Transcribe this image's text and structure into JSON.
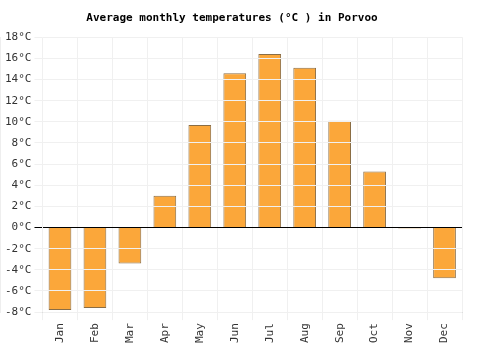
{
  "chart_data": {
    "type": "bar",
    "title": "Average monthly temperatures (°C ) in Porvoo",
    "categories": [
      "Jan",
      "Feb",
      "Mar",
      "Apr",
      "May",
      "Jun",
      "Jul",
      "Aug",
      "Sep",
      "Oct",
      "Nov",
      "Dec"
    ],
    "values": [
      -7.8,
      -7.6,
      -3.4,
      3.0,
      9.7,
      14.6,
      16.4,
      15.1,
      10.1,
      5.3,
      -0.1,
      -4.8
    ],
    "color": "#fba73a",
    "ylim": [
      -8,
      18
    ],
    "yticks": [
      {
        "value": -8,
        "label": "-8°C"
      },
      {
        "value": -6,
        "label": "-6°C"
      },
      {
        "value": -4,
        "label": "-4°C"
      },
      {
        "value": -2,
        "label": "-2°C"
      },
      {
        "value": 0,
        "label": "0°C"
      },
      {
        "value": 2,
        "label": "2°C"
      },
      {
        "value": 4,
        "label": "4°C"
      },
      {
        "value": 6,
        "label": "6°C"
      },
      {
        "value": 8,
        "label": "8°C"
      },
      {
        "value": 10,
        "label": "10°C"
      },
      {
        "value": 12,
        "label": "12°C"
      },
      {
        "value": 14,
        "label": "14°C"
      },
      {
        "value": 16,
        "label": "16°C"
      },
      {
        "value": 18,
        "label": "18°C"
      }
    ],
    "grid": true
  }
}
